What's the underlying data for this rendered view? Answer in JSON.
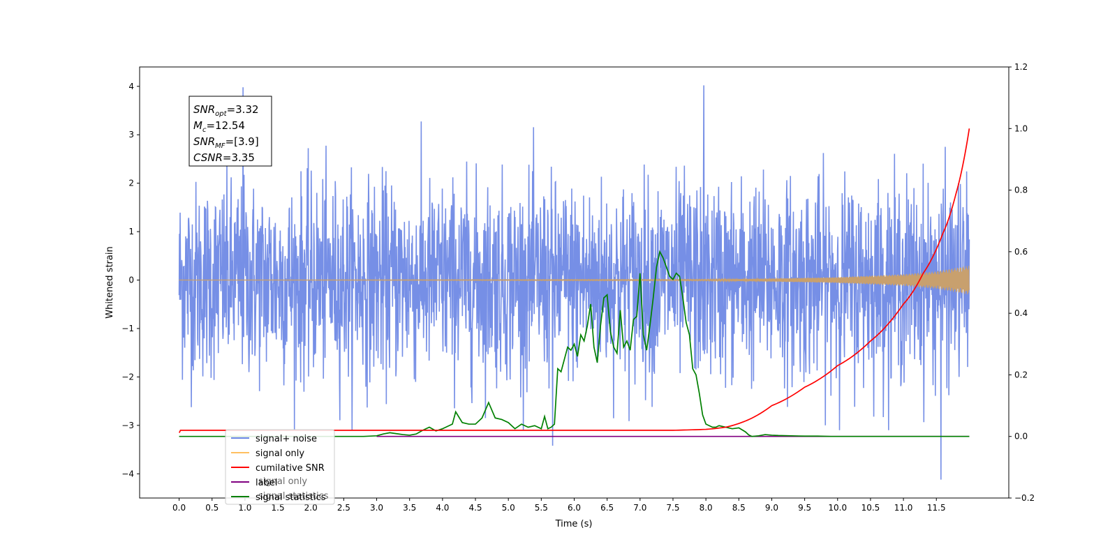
{
  "chart_data": {
    "type": "line",
    "title": "",
    "xlabel": "Time (s)",
    "ylabel": "Whitened strain",
    "y2label": "",
    "xlim": [
      -0.6,
      12.6
    ],
    "ylim": [
      -4.5,
      4.4
    ],
    "y2lim": [
      -0.2,
      1.2
    ],
    "xticks": [
      0.0,
      0.5,
      1.0,
      1.5,
      2.0,
      2.5,
      3.0,
      3.5,
      4.0,
      4.5,
      5.0,
      5.5,
      6.0,
      6.5,
      7.0,
      7.5,
      8.0,
      8.5,
      9.0,
      9.5,
      10.0,
      10.5,
      11.0,
      11.5
    ],
    "xtick_labels": [
      "0.0",
      "0.5",
      "1.0",
      "1.5",
      "2.0",
      "2.5",
      "3.0",
      "3.5",
      "4.0",
      "4.5",
      "5.0",
      "5.5",
      "6.0",
      "6.5",
      "7.0",
      "7.5",
      "8.0",
      "8.5",
      "9.0",
      "9.5",
      "10.0",
      "10.5",
      "11.0",
      "11.5"
    ],
    "yticks": [
      -4,
      -3,
      -2,
      -1,
      0,
      1,
      2,
      3,
      4
    ],
    "ytick_labels": [
      "−4",
      "−3",
      "−2",
      "−1",
      "0",
      "1",
      "2",
      "3",
      "4"
    ],
    "y2ticks": [
      -0.2,
      0.0,
      0.2,
      0.4,
      0.6,
      0.8,
      1.0,
      1.2
    ],
    "y2tick_labels": [
      "−0.2",
      "0.0",
      "0.2",
      "0.4",
      "0.6",
      "0.8",
      "1.0",
      "1.2"
    ],
    "grid": false,
    "legend_position": "lower-left",
    "series": [
      {
        "name": "signal+ noise",
        "axis": "left",
        "color": "#6a86e4",
        "description_type": "noise",
        "t_range": [
          0.0,
          12.0
        ],
        "typical_band": [
          -2.3,
          2.3
        ],
        "extreme_points": [
          [
            0.97,
            3.98
          ],
          [
            7.97,
            4.02
          ],
          [
            11.57,
            -4.12
          ],
          [
            5.67,
            -3.42
          ]
        ]
      },
      {
        "name": "signal only",
        "axis": "left",
        "color": "#ffbf60",
        "description_type": "chirp",
        "t_range": [
          0.0,
          12.0
        ],
        "envelope": [
          [
            0.0,
            0.0
          ],
          [
            8.0,
            0.01
          ],
          [
            9.0,
            0.03
          ],
          [
            10.0,
            0.06
          ],
          [
            11.0,
            0.12
          ],
          [
            11.5,
            0.18
          ],
          [
            12.0,
            0.3
          ]
        ]
      },
      {
        "name": "cumilative SNR",
        "axis": "right",
        "color": "#ff0000",
        "x": [
          0.0,
          0.02,
          7.5,
          8.0,
          8.3,
          8.6,
          9.0,
          9.5,
          10.0,
          10.5,
          11.0,
          11.3,
          11.6,
          11.8,
          12.0
        ],
        "values": [
          0.012,
          0.02,
          0.02,
          0.023,
          0.03,
          0.05,
          0.1,
          0.16,
          0.23,
          0.31,
          0.43,
          0.53,
          0.66,
          0.79,
          1.0
        ]
      },
      {
        "name": "label",
        "axis": "right",
        "color": "#800080",
        "x": [
          3.0,
          12.0
        ],
        "values": [
          0.0,
          0.0
        ]
      },
      {
        "name": "signal statistics",
        "axis": "right",
        "color": "#008000",
        "x": [
          0.0,
          2.8,
          3.0,
          3.1,
          3.2,
          3.3,
          3.4,
          3.5,
          3.6,
          3.7,
          3.8,
          3.9,
          4.0,
          4.1,
          4.15,
          4.2,
          4.3,
          4.4,
          4.5,
          4.6,
          4.7,
          4.8,
          4.9,
          5.0,
          5.1,
          5.2,
          5.3,
          5.4,
          5.5,
          5.55,
          5.6,
          5.65,
          5.7,
          5.75,
          5.8,
          5.85,
          5.9,
          5.95,
          6.0,
          6.05,
          6.1,
          6.15,
          6.2,
          6.25,
          6.3,
          6.35,
          6.4,
          6.45,
          6.5,
          6.55,
          6.6,
          6.65,
          6.7,
          6.75,
          6.8,
          6.85,
          6.9,
          6.95,
          7.0,
          7.05,
          7.1,
          7.15,
          7.2,
          7.25,
          7.3,
          7.35,
          7.4,
          7.45,
          7.5,
          7.55,
          7.6,
          7.65,
          7.7,
          7.75,
          7.8,
          7.85,
          7.9,
          7.95,
          8.0,
          8.05,
          8.1,
          8.15,
          8.2,
          8.3,
          8.4,
          8.5,
          8.6,
          8.65,
          8.7,
          8.8,
          8.9,
          9.0,
          9.1,
          9.3,
          9.5,
          9.7,
          9.9,
          10.2,
          12.0
        ],
        "values": [
          0.0,
          0.0,
          0.002,
          0.008,
          0.012,
          0.009,
          0.006,
          0.004,
          0.008,
          0.02,
          0.03,
          0.018,
          0.025,
          0.035,
          0.04,
          0.08,
          0.045,
          0.04,
          0.04,
          0.06,
          0.11,
          0.06,
          0.055,
          0.045,
          0.025,
          0.04,
          0.03,
          0.035,
          0.025,
          0.065,
          0.025,
          0.03,
          0.04,
          0.22,
          0.21,
          0.25,
          0.29,
          0.28,
          0.3,
          0.26,
          0.33,
          0.31,
          0.36,
          0.43,
          0.29,
          0.24,
          0.36,
          0.45,
          0.46,
          0.34,
          0.29,
          0.27,
          0.41,
          0.29,
          0.31,
          0.28,
          0.38,
          0.39,
          0.53,
          0.33,
          0.28,
          0.36,
          0.45,
          0.55,
          0.6,
          0.58,
          0.55,
          0.52,
          0.51,
          0.53,
          0.52,
          0.45,
          0.37,
          0.33,
          0.22,
          0.2,
          0.14,
          0.07,
          0.04,
          0.035,
          0.03,
          0.03,
          0.035,
          0.03,
          0.025,
          0.028,
          0.015,
          0.005,
          0.0,
          0.002,
          0.006,
          0.004,
          0.003,
          0.002,
          0.001,
          0.001,
          0.0,
          0.0,
          0.0
        ]
      }
    ],
    "legend_entries": [
      "signal+ noise",
      "signal only",
      "cumilative SNR",
      "label",
      "signal statistics"
    ],
    "annotation": {
      "lines": [
        {
          "main": "SNR",
          "sub": "opt",
          "rest": "=3.32"
        },
        {
          "main": "M",
          "sub": "c",
          "rest": "=12.54"
        },
        {
          "main": "SNR",
          "sub": "MF",
          "rest": "=[3.9]"
        },
        {
          "main": "CSNR",
          "sub": "",
          "rest": "=3.35"
        }
      ]
    },
    "legend_ghost_text": [
      "signal only",
      "signal statistics"
    ]
  }
}
